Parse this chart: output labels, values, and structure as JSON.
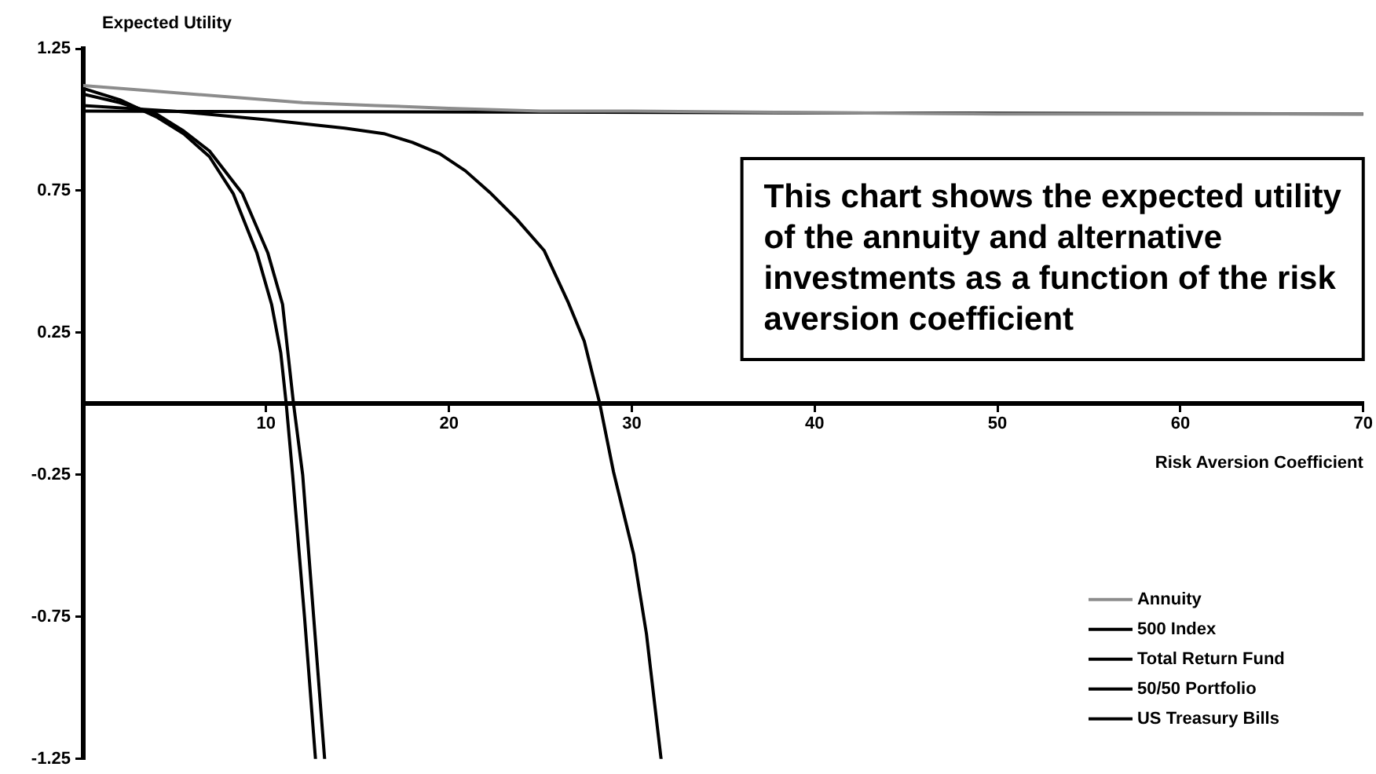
{
  "chart_data": {
    "type": "line",
    "xlabel": "Risk Aversion Coefficient",
    "ylabel": "Expected Utility",
    "annotations": [
      "This chart shows the expected utility of the annuity and alternative investments as a function of the risk aversion coefficient"
    ],
    "xlim": [
      0,
      70
    ],
    "xticks": [
      {
        "value": 0,
        "label": null
      },
      10,
      20,
      30,
      40,
      50,
      60,
      70
    ],
    "ylim": [
      -1.25,
      1.25
    ],
    "yticks": [
      -1.25,
      -0.75,
      -0.25,
      0.25,
      0.75,
      1.25
    ],
    "legend": "bottom right",
    "marker": "none",
    "line_style": "solid",
    "series": [
      {
        "name": "Annuity",
        "color": "#8c8c8c",
        "x": [
          0,
          4,
          8,
          12,
          16,
          20,
          25,
          30,
          40,
          50,
          60,
          70
        ],
        "values": [
          1.12,
          1.1,
          1.08,
          1.06,
          1.05,
          1.04,
          1.03,
          1.03,
          1.025,
          1.02,
          1.02,
          1.02
        ]
      },
      {
        "name": "500 Index",
        "color": "#000000",
        "x": [
          0,
          2,
          4,
          5.5,
          6.9,
          8.2,
          9.5,
          10.3,
          10.8,
          11.1,
          11.45,
          12.1,
          12.7
        ],
        "values": [
          1.11,
          1.07,
          1.01,
          0.95,
          0.87,
          0.74,
          0.53,
          0.35,
          0.18,
          0,
          -0.25,
          -0.75,
          -1.25
        ]
      },
      {
        "name": "Total Return Fund",
        "color": "#000000",
        "x": [
          0,
          2,
          4,
          5.5,
          6.9,
          8.7,
          10.1,
          10.9,
          11.5,
          12,
          12.6,
          13.2
        ],
        "values": [
          1.09,
          1.06,
          1.02,
          0.96,
          0.89,
          0.74,
          0.53,
          0.35,
          0,
          -0.25,
          -0.75,
          -1.25
        ]
      },
      {
        "name": "50/50 Portfolio",
        "color": "#000000",
        "x": [
          0,
          5,
          10,
          14.3,
          16.5,
          18,
          19.5,
          20.9,
          22.3,
          23.7,
          25.2,
          26.5,
          27.4,
          28.25,
          29,
          30.1,
          30.8,
          31.6
        ],
        "values": [
          1.05,
          1.03,
          1.0,
          0.97,
          0.95,
          0.92,
          0.88,
          0.82,
          0.74,
          0.65,
          0.54,
          0.36,
          0.22,
          0,
          -0.24,
          -0.53,
          -0.81,
          -1.25
        ]
      },
      {
        "name": "US Treasury Bills",
        "color": "#000000",
        "x": [
          0,
          70
        ],
        "values": [
          1.03,
          1.02
        ]
      }
    ]
  }
}
